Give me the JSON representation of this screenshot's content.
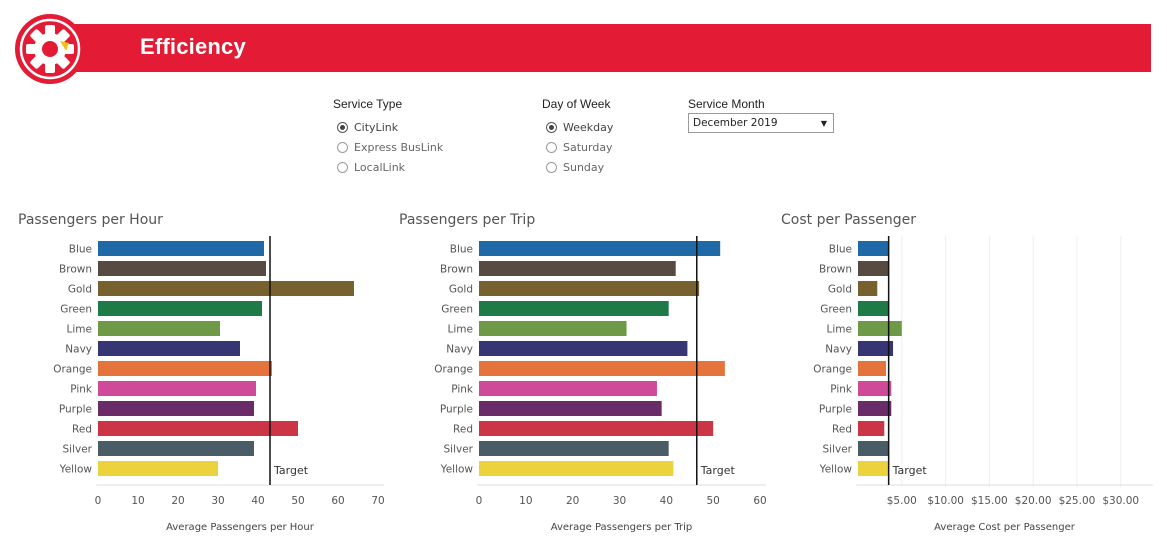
{
  "header": {
    "title": "Efficiency",
    "logo_icon": "gear-icon",
    "banner_color": "#e31b35"
  },
  "filters": {
    "service_type": {
      "title": "Service Type",
      "options": [
        "CityLink",
        "Express BusLink",
        "LocalLink"
      ],
      "selected": "CityLink"
    },
    "day_of_week": {
      "title": "Day of Week",
      "options": [
        "Weekday",
        "Saturday",
        "Sunday"
      ],
      "selected": "Weekday"
    },
    "service_month": {
      "title": "Service Month",
      "value": "December 2019"
    }
  },
  "chart_data": [
    {
      "type": "bar",
      "title": "Passengers per Hour",
      "xlabel": "Average Passengers per Hour",
      "orientation": "horizontal",
      "categories": [
        "Blue",
        "Brown",
        "Gold",
        "Green",
        "Lime",
        "Navy",
        "Orange",
        "Pink",
        "Purple",
        "Red",
        "Silver",
        "Yellow"
      ],
      "values": [
        41.5,
        42,
        64,
        41,
        30.5,
        35.5,
        43.5,
        39.5,
        39,
        50,
        39,
        30
      ],
      "colors": [
        "#1f6aa6",
        "#574a40",
        "#76612f",
        "#1e7b48",
        "#6e9a47",
        "#373573",
        "#e5733c",
        "#d04a9a",
        "#6a2b69",
        "#cc3546",
        "#4a5c65",
        "#ecd33e"
      ],
      "xlim": [
        0,
        70
      ],
      "xticks": [
        "0",
        "10",
        "20",
        "30",
        "40",
        "50",
        "60",
        "70"
      ],
      "reference_line": {
        "label": "Target",
        "value": 43
      }
    },
    {
      "type": "bar",
      "title": "Passengers per Trip",
      "xlabel": "Average Passengers per Trip",
      "orientation": "horizontal",
      "categories": [
        "Blue",
        "Brown",
        "Gold",
        "Green",
        "Lime",
        "Navy",
        "Orange",
        "Pink",
        "Purple",
        "Red",
        "Silver",
        "Yellow"
      ],
      "values": [
        51.5,
        42,
        47,
        40.5,
        31.5,
        44.5,
        52.5,
        38,
        39,
        50,
        40.5,
        41.5
      ],
      "colors": [
        "#1f6aa6",
        "#574a40",
        "#76612f",
        "#1e7b48",
        "#6e9a47",
        "#373573",
        "#e5733c",
        "#d04a9a",
        "#6a2b69",
        "#cc3546",
        "#4a5c65",
        "#ecd33e"
      ],
      "xlim": [
        0,
        60
      ],
      "xticks": [
        "0",
        "10",
        "20",
        "30",
        "40",
        "50",
        "60"
      ],
      "reference_line": {
        "label": "Target",
        "value": 46.5
      }
    },
    {
      "type": "bar",
      "title": "Cost per Passenger",
      "xlabel": "Average Cost per Passenger",
      "orientation": "horizontal",
      "categories": [
        "Blue",
        "Brown",
        "Gold",
        "Green",
        "Lime",
        "Navy",
        "Orange",
        "Pink",
        "Purple",
        "Red",
        "Silver",
        "Yellow"
      ],
      "values": [
        3.5,
        3.5,
        2.2,
        3.5,
        5.0,
        4.0,
        3.2,
        3.8,
        3.8,
        3.0,
        3.5,
        3.5
      ],
      "colors": [
        "#1f6aa6",
        "#574a40",
        "#76612f",
        "#1e7b48",
        "#6e9a47",
        "#373573",
        "#e5733c",
        "#d04a9a",
        "#6a2b69",
        "#cc3546",
        "#4a5c65",
        "#ecd33e"
      ],
      "xlim": [
        0,
        33
      ],
      "xticks": [
        "$5.00",
        "$10.00",
        "$15.00",
        "$20.00",
        "$25.00",
        "$30.00"
      ],
      "xtick_values": [
        5,
        10,
        15,
        20,
        25,
        30
      ],
      "grid": true,
      "reference_line": {
        "label": "Target",
        "value": 3.5
      }
    }
  ]
}
